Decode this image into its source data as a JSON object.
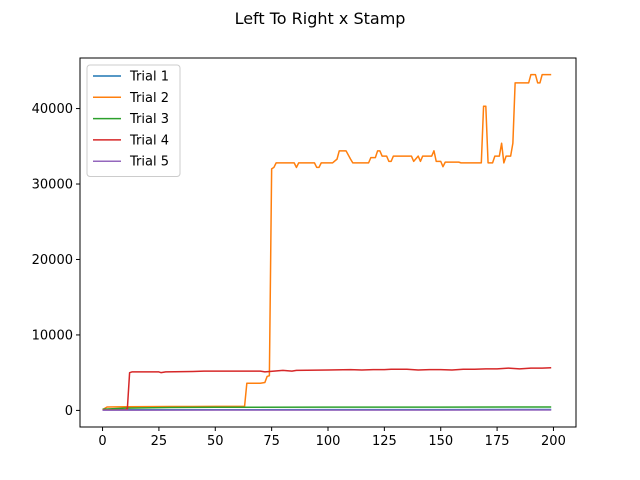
{
  "chart_data": {
    "type": "line",
    "title": "Left To Right x Stamp",
    "xlabel": "",
    "ylabel": "",
    "xlim": [
      -10,
      210
    ],
    "ylim": [
      -2200,
      46700
    ],
    "xticks": [
      0,
      25,
      50,
      75,
      100,
      125,
      150,
      175,
      200
    ],
    "yticks": [
      0,
      10000,
      20000,
      30000,
      40000
    ],
    "grid": false,
    "legend_position": "top-left",
    "series": [
      {
        "name": "Trial 1",
        "color": "#1f77b4",
        "points": [
          [
            0,
            80
          ],
          [
            50,
            90
          ],
          [
            100,
            100
          ],
          [
            150,
            110
          ],
          [
            199,
            120
          ]
        ]
      },
      {
        "name": "Trial 2",
        "color": "#ff7f0e",
        "points": [
          [
            0,
            100
          ],
          [
            2,
            450
          ],
          [
            10,
            480
          ],
          [
            20,
            500
          ],
          [
            30,
            510
          ],
          [
            40,
            520
          ],
          [
            50,
            530
          ],
          [
            63,
            540
          ],
          [
            64,
            3600
          ],
          [
            70,
            3600
          ],
          [
            72,
            3700
          ],
          [
            73,
            4500
          ],
          [
            74,
            4600
          ],
          [
            75,
            32000
          ],
          [
            76,
            32200
          ],
          [
            77,
            32800
          ],
          [
            85,
            32800
          ],
          [
            86,
            32200
          ],
          [
            87,
            32800
          ],
          [
            94,
            32800
          ],
          [
            95,
            32200
          ],
          [
            96,
            32200
          ],
          [
            97,
            32800
          ],
          [
            102,
            32800
          ],
          [
            104,
            33300
          ],
          [
            105,
            34400
          ],
          [
            108,
            34400
          ],
          [
            110,
            33300
          ],
          [
            111,
            32800
          ],
          [
            118,
            32800
          ],
          [
            119,
            33500
          ],
          [
            121,
            33500
          ],
          [
            122,
            34400
          ],
          [
            123,
            34400
          ],
          [
            124,
            33700
          ],
          [
            126,
            33700
          ],
          [
            127,
            33000
          ],
          [
            128,
            33000
          ],
          [
            129,
            33700
          ],
          [
            137,
            33700
          ],
          [
            138,
            33000
          ],
          [
            140,
            33700
          ],
          [
            141,
            33000
          ],
          [
            142,
            33700
          ],
          [
            146,
            33700
          ],
          [
            147,
            34400
          ],
          [
            148,
            33000
          ],
          [
            150,
            33000
          ],
          [
            151,
            32300
          ],
          [
            152,
            32900
          ],
          [
            158,
            32900
          ],
          [
            159,
            32800
          ],
          [
            168,
            32800
          ],
          [
            169,
            40300
          ],
          [
            170,
            40300
          ],
          [
            171,
            32800
          ],
          [
            173,
            32800
          ],
          [
            174,
            33700
          ],
          [
            176,
            33700
          ],
          [
            177,
            35400
          ],
          [
            178,
            32800
          ],
          [
            179,
            33700
          ],
          [
            181,
            33700
          ],
          [
            182,
            35400
          ],
          [
            183,
            43400
          ],
          [
            189,
            43400
          ],
          [
            190,
            44500
          ],
          [
            192,
            44500
          ],
          [
            193,
            43400
          ],
          [
            194,
            43400
          ],
          [
            195,
            44500
          ],
          [
            199,
            44500
          ]
        ]
      },
      {
        "name": "Trial 3",
        "color": "#2ca02c",
        "points": [
          [
            0,
            150
          ],
          [
            10,
            300
          ],
          [
            30,
            380
          ],
          [
            50,
            420
          ],
          [
            100,
            430
          ],
          [
            150,
            440
          ],
          [
            199,
            450
          ]
        ]
      },
      {
        "name": "Trial 4",
        "color": "#d62728",
        "points": [
          [
            0,
            50
          ],
          [
            10,
            60
          ],
          [
            11,
            200
          ],
          [
            12,
            5000
          ],
          [
            13,
            5100
          ],
          [
            20,
            5100
          ],
          [
            25,
            5100
          ],
          [
            26,
            5000
          ],
          [
            28,
            5100
          ],
          [
            40,
            5150
          ],
          [
            45,
            5200
          ],
          [
            60,
            5200
          ],
          [
            70,
            5200
          ],
          [
            72,
            5100
          ],
          [
            76,
            5200
          ],
          [
            80,
            5300
          ],
          [
            84,
            5200
          ],
          [
            86,
            5300
          ],
          [
            100,
            5350
          ],
          [
            110,
            5400
          ],
          [
            115,
            5350
          ],
          [
            120,
            5400
          ],
          [
            125,
            5400
          ],
          [
            128,
            5450
          ],
          [
            135,
            5450
          ],
          [
            140,
            5350
          ],
          [
            145,
            5400
          ],
          [
            150,
            5400
          ],
          [
            155,
            5350
          ],
          [
            160,
            5450
          ],
          [
            165,
            5450
          ],
          [
            170,
            5500
          ],
          [
            175,
            5500
          ],
          [
            180,
            5600
          ],
          [
            185,
            5500
          ],
          [
            190,
            5600
          ],
          [
            195,
            5600
          ],
          [
            199,
            5650
          ]
        ]
      },
      {
        "name": "Trial 5",
        "color": "#9467bd",
        "points": [
          [
            0,
            20
          ],
          [
            50,
            30
          ],
          [
            100,
            40
          ],
          [
            150,
            40
          ],
          [
            199,
            50
          ]
        ]
      }
    ]
  }
}
